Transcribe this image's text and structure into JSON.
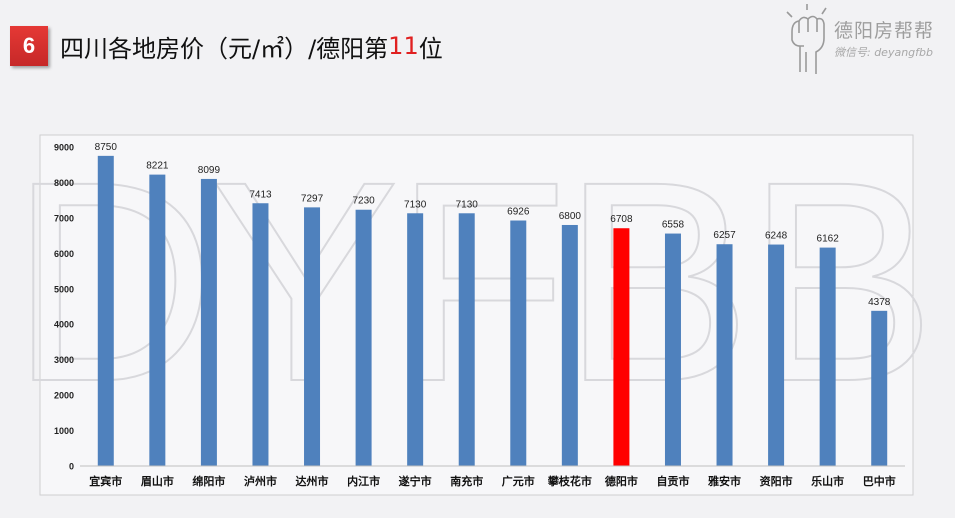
{
  "header": {
    "badge_number": "6",
    "title_prefix": "四川各地房价（元/㎡）/德阳第",
    "title_rank": "11",
    "title_suffix": "位",
    "rank_color": "#e02020"
  },
  "logo": {
    "brand_name": "德阳房帮帮",
    "wechat_id": "微信号: deyangfbb",
    "watermark": "DYFBB"
  },
  "chart_data": {
    "type": "bar",
    "categories": [
      "宜宾市",
      "眉山市",
      "绵阳市",
      "泸州市",
      "达州市",
      "内江市",
      "遂宁市",
      "南充市",
      "广元市",
      "攀枝花市",
      "德阳市",
      "自贡市",
      "雅安市",
      "资阳市",
      "乐山市",
      "巴中市"
    ],
    "values": [
      8750,
      8221,
      8099,
      7413,
      7297,
      7230,
      7130,
      7130,
      6926,
      6800,
      6708,
      6558,
      6257,
      6248,
      6162,
      4378
    ],
    "highlight_index": 10,
    "bar_color": "#4f81bd",
    "highlight_color": "#ff0000",
    "ylim": [
      0,
      9000
    ],
    "yticks": [
      0,
      1000,
      2000,
      3000,
      4000,
      5000,
      6000,
      7000,
      8000,
      9000
    ],
    "title": "",
    "xlabel": "",
    "ylabel": "",
    "grid": false,
    "data_labels": true
  }
}
